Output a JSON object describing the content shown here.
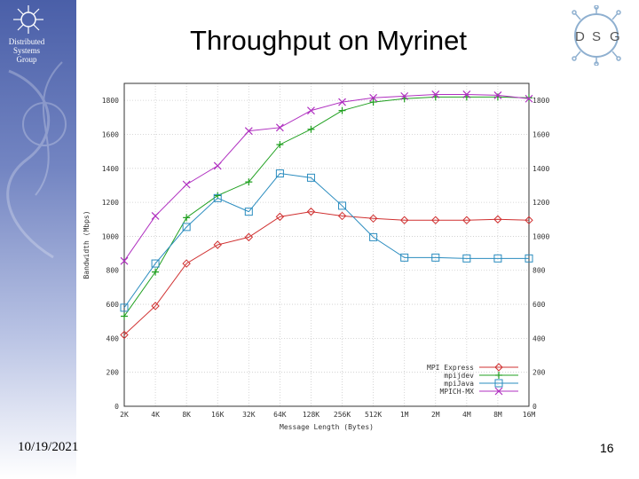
{
  "slide": {
    "title": "Throughput on Myrinet",
    "group_name": [
      "Distributed",
      "Systems",
      "Group"
    ],
    "logo_letters": [
      "D",
      "S",
      "G"
    ],
    "date": "10/19/2021",
    "page_number": "16"
  },
  "chart_data": {
    "type": "line",
    "title": "",
    "xlabel": "Message Length (Bytes)",
    "ylabel": "Bandwidth (Mbps)",
    "categories": [
      "2K",
      "4K",
      "8K",
      "16K",
      "32K",
      "64K",
      "128K",
      "256K",
      "512K",
      "1M",
      "2M",
      "4M",
      "8M",
      "16M"
    ],
    "ylim": [
      0,
      1900
    ],
    "yticks": [
      0,
      200,
      400,
      600,
      800,
      1000,
      1200,
      1400,
      1600,
      1800
    ],
    "grid": true,
    "legend_position": "bottom-right",
    "series": [
      {
        "name": "MPI Express",
        "color": "#d03030",
        "marker": "diamond",
        "values": [
          420,
          590,
          840,
          950,
          995,
          1115,
          1145,
          1120,
          1105,
          1095,
          1095,
          1095,
          1100,
          1095
        ]
      },
      {
        "name": "mpijdev",
        "color": "#20a020",
        "marker": "plus",
        "values": [
          530,
          790,
          1110,
          1240,
          1320,
          1540,
          1630,
          1740,
          1790,
          1810,
          1820,
          1820,
          1820,
          1815
        ]
      },
      {
        "name": "mpiJava",
        "color": "#2a8cbf",
        "marker": "square",
        "values": [
          580,
          840,
          1055,
          1225,
          1145,
          1370,
          1345,
          1180,
          995,
          875,
          875,
          870,
          870,
          870
        ]
      },
      {
        "name": "MPICH-MX",
        "color": "#b030c0",
        "marker": "cross",
        "values": [
          855,
          1120,
          1305,
          1415,
          1620,
          1640,
          1740,
          1790,
          1815,
          1825,
          1835,
          1835,
          1830,
          1810
        ]
      }
    ]
  }
}
